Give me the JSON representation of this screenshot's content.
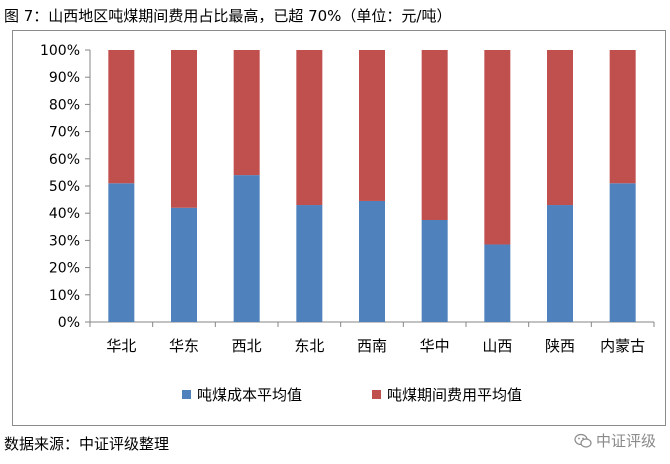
{
  "title": "图 7：山西地区吨煤期间费用占比最高，已超 70%（单位：元/吨）",
  "source": "数据来源：中证评级整理",
  "watermark": "中证评级",
  "chart_data": {
    "type": "bar",
    "stacked": true,
    "categories": [
      "华北",
      "华东",
      "西北",
      "东北",
      "西南",
      "华中",
      "山西",
      "陕西",
      "内蒙古"
    ],
    "series": [
      {
        "name": "吨煤成本平均值",
        "color": "#4f81bd",
        "values": [
          51,
          42,
          54,
          43,
          44.5,
          37.5,
          28.5,
          43,
          51
        ]
      },
      {
        "name": "吨煤期间费用平均值",
        "color": "#c0504d",
        "values": [
          49,
          58,
          46,
          57,
          55.5,
          62.5,
          71.5,
          57,
          49
        ]
      }
    ],
    "yticks": [
      "0%",
      "10%",
      "20%",
      "30%",
      "40%",
      "50%",
      "60%",
      "70%",
      "80%",
      "90%",
      "100%"
    ],
    "ylim": [
      0,
      100
    ],
    "grid": false,
    "legend_position": "bottom"
  }
}
